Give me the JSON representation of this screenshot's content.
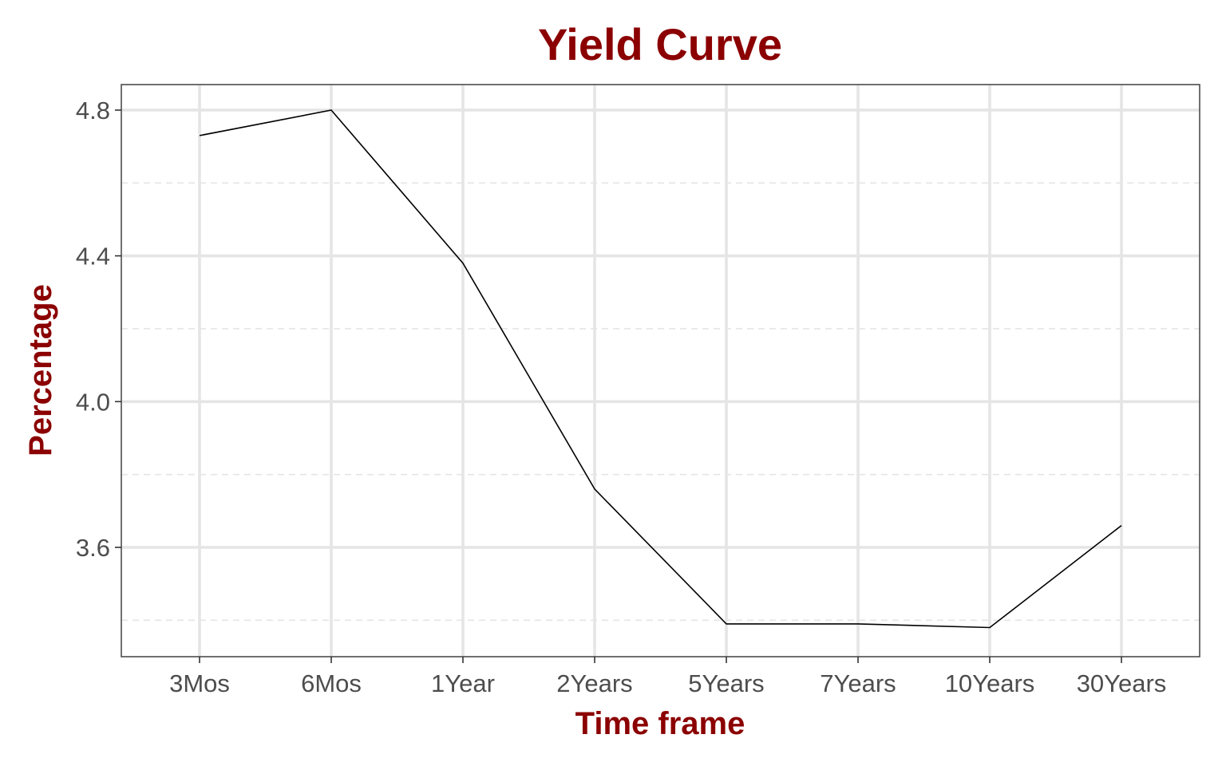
{
  "chart_data": {
    "type": "line",
    "title": "Yield Curve",
    "xlabel": "Time frame",
    "ylabel": "Percentage",
    "categories": [
      "3Mos",
      "6Mos",
      "1Year",
      "2Years",
      "5Years",
      "7Years",
      "10Years",
      "30Years"
    ],
    "values": [
      4.73,
      4.8,
      4.38,
      3.76,
      3.39,
      3.39,
      3.38,
      3.66
    ],
    "ylim": [
      3.3,
      4.87
    ],
    "yticks": [
      3.6,
      4.0,
      4.4,
      4.8
    ],
    "ytick_labels": [
      "3.6",
      "4.0",
      "4.4",
      "4.8"
    ],
    "y_minor_ticks": [
      3.4,
      3.8,
      4.2,
      4.6
    ],
    "grid": true,
    "line_color": "#000000",
    "title_color": "#8b0000",
    "grid_color": "#e5e5e5",
    "panel_border_color": "#4d4d4d",
    "tick_label_color": "#4d4d4d"
  }
}
